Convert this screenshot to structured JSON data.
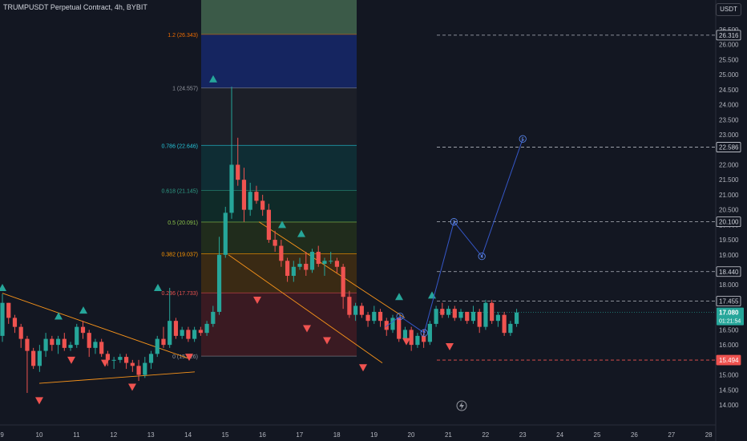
{
  "header": {
    "symbol_title": "TRUMPUSDT Perpetual Contract, 4h, BYBIT",
    "currency_button": "USDT"
  },
  "colors": {
    "up": "#26a69a",
    "down": "#ef5350",
    "bg": "#131722",
    "axis_text": "#b2b5be",
    "wave": "#2962ff",
    "trend": "#f7931a"
  },
  "chart_data": {
    "type": "candlestick",
    "title": "TRUMPUSDT Perpetual Contract, 4h, BYBIT",
    "yaxis": {
      "min": 14.0,
      "max": 26.5,
      "step": 0.5,
      "side": "right"
    },
    "xaxis": {
      "ticks": [
        "9",
        "10",
        "11",
        "12",
        "13",
        "14",
        "15",
        "16",
        "17",
        "18",
        "19",
        "20",
        "21",
        "22",
        "23",
        "24",
        "25",
        "26",
        "27",
        "28"
      ]
    },
    "candles": [
      [
        16.3,
        17.7,
        16.1,
        17.4
      ],
      [
        17.4,
        17.4,
        16.7,
        16.9
      ],
      [
        16.9,
        17.0,
        16.4,
        16.6
      ],
      [
        16.6,
        16.7,
        15.9,
        16.2
      ],
      [
        16.2,
        16.3,
        14.4,
        15.8
      ],
      [
        15.8,
        15.9,
        15.2,
        15.3
      ],
      [
        15.3,
        16.0,
        15.1,
        15.8
      ],
      [
        15.8,
        16.4,
        15.6,
        16.2
      ],
      [
        16.2,
        16.3,
        15.8,
        16.0
      ],
      [
        16.0,
        16.3,
        15.7,
        16.2
      ],
      [
        16.2,
        16.4,
        15.8,
        15.9
      ],
      [
        15.9,
        16.1,
        15.8,
        16.0
      ],
      [
        16.0,
        16.7,
        15.9,
        16.6
      ],
      [
        16.6,
        16.8,
        16.2,
        16.4
      ],
      [
        16.4,
        16.5,
        15.6,
        15.9
      ],
      [
        15.9,
        16.2,
        15.7,
        16.1
      ],
      [
        16.1,
        16.2,
        15.6,
        15.7
      ],
      [
        15.7,
        15.8,
        15.3,
        15.5
      ],
      [
        15.5,
        15.6,
        15.2,
        15.5
      ],
      [
        15.5,
        15.7,
        15.4,
        15.6
      ],
      [
        15.6,
        15.7,
        15.2,
        15.4
      ],
      [
        15.4,
        15.5,
        15.1,
        15.3
      ],
      [
        15.3,
        15.5,
        14.8,
        15.0
      ],
      [
        15.0,
        15.6,
        14.9,
        15.4
      ],
      [
        15.4,
        15.8,
        15.2,
        15.7
      ],
      [
        15.7,
        16.3,
        15.6,
        16.2
      ],
      [
        16.2,
        16.6,
        15.9,
        16.0
      ],
      [
        16.0,
        17.9,
        15.9,
        16.8
      ],
      [
        16.8,
        16.9,
        16.2,
        16.3
      ],
      [
        16.3,
        16.6,
        16.2,
        16.5
      ],
      [
        16.5,
        16.6,
        16.1,
        16.2
      ],
      [
        16.2,
        16.6,
        16.1,
        16.5
      ],
      [
        16.5,
        16.6,
        16.3,
        16.4
      ],
      [
        16.4,
        16.8,
        16.3,
        16.7
      ],
      [
        16.7,
        17.3,
        16.6,
        17.1
      ],
      [
        17.1,
        19.6,
        17.0,
        19.0
      ],
      [
        19.0,
        20.6,
        18.9,
        20.4
      ],
      [
        20.4,
        24.6,
        20.2,
        22.0
      ],
      [
        22.0,
        22.9,
        21.3,
        21.5
      ],
      [
        21.5,
        21.9,
        20.1,
        20.5
      ],
      [
        20.5,
        21.4,
        20.3,
        21.1
      ],
      [
        21.1,
        21.3,
        20.7,
        20.8
      ],
      [
        20.8,
        21.0,
        20.3,
        20.5
      ],
      [
        20.5,
        20.7,
        19.4,
        19.5
      ],
      [
        19.5,
        19.8,
        19.1,
        19.3
      ],
      [
        19.3,
        19.5,
        18.6,
        18.8
      ],
      [
        18.8,
        18.9,
        18.1,
        18.3
      ],
      [
        18.3,
        18.8,
        18.1,
        18.6
      ],
      [
        18.6,
        18.9,
        18.5,
        18.7
      ],
      [
        18.7,
        19.1,
        18.3,
        18.5
      ],
      [
        18.5,
        19.2,
        18.4,
        19.1
      ],
      [
        19.1,
        19.3,
        18.6,
        18.7
      ],
      [
        18.7,
        18.9,
        18.3,
        18.8
      ],
      [
        18.8,
        19.1,
        18.7,
        18.8
      ],
      [
        18.8,
        18.9,
        18.4,
        18.6
      ],
      [
        18.6,
        18.7,
        17.2,
        17.6
      ],
      [
        17.6,
        17.8,
        16.9,
        17.0
      ],
      [
        17.0,
        17.4,
        16.8,
        17.3
      ],
      [
        17.3,
        17.4,
        16.9,
        17.0
      ],
      [
        17.0,
        17.1,
        16.6,
        16.8
      ],
      [
        16.8,
        17.3,
        16.7,
        17.1
      ],
      [
        17.1,
        17.2,
        16.6,
        16.8
      ],
      [
        16.8,
        16.9,
        16.3,
        16.5
      ],
      [
        16.5,
        17.0,
        16.4,
        16.9
      ],
      [
        16.9,
        16.9,
        16.1,
        16.2
      ],
      [
        16.2,
        16.6,
        16.1,
        16.5
      ],
      [
        16.5,
        16.6,
        15.8,
        16.0
      ],
      [
        16.0,
        16.4,
        15.9,
        16.3
      ],
      [
        16.3,
        16.5,
        15.9,
        16.1
      ],
      [
        16.1,
        16.8,
        16.0,
        16.7
      ],
      [
        16.7,
        17.3,
        16.6,
        17.2
      ],
      [
        17.2,
        17.4,
        16.9,
        17.0
      ],
      [
        17.0,
        17.3,
        16.9,
        17.2
      ],
      [
        17.2,
        17.3,
        16.8,
        16.9
      ],
      [
        16.9,
        17.2,
        16.8,
        17.1
      ],
      [
        17.1,
        17.1,
        16.7,
        16.8
      ],
      [
        16.8,
        17.3,
        16.7,
        17.1
      ],
      [
        17.1,
        17.2,
        16.4,
        16.6
      ],
      [
        16.6,
        17.5,
        16.5,
        17.4
      ],
      [
        17.4,
        17.5,
        16.7,
        16.8
      ],
      [
        16.8,
        17.1,
        16.6,
        17.0
      ],
      [
        17.0,
        17.1,
        16.3,
        16.4
      ],
      [
        16.4,
        16.8,
        16.3,
        16.7
      ],
      [
        16.7,
        17.2,
        16.6,
        17.08
      ]
    ],
    "fib_levels": [
      {
        "label": "1.2 (26.343)",
        "value": 26.343,
        "color": "#ef6c00",
        "fill": "#344a3d"
      },
      {
        "label": "1 (24.557)",
        "value": 24.557,
        "color": "#9598a1",
        "fill": "#152560"
      },
      {
        "label": "0.786 (22.646)",
        "value": 22.646,
        "color": "#26c6da",
        "fill": "#1c1f28"
      },
      {
        "label": "0.618 (21.145)",
        "value": 21.145,
        "color": "#2e9e87",
        "fill": "#0f2d34"
      },
      {
        "label": "0.5 (20.091)",
        "value": 20.091,
        "color": "#8bc34a",
        "fill": "#0f2a28"
      },
      {
        "label": "0.382 (19.037)",
        "value": 19.037,
        "color": "#ff9800",
        "fill": "#202c1c"
      },
      {
        "label": "0.236 (17.733)",
        "value": 17.733,
        "color": "#ef5350",
        "fill": "#3a2a14"
      },
      {
        "label": "0 (15.626)",
        "value": 15.626,
        "color": "#9598a1",
        "fill": "#3a1a22"
      }
    ],
    "price_lines": [
      {
        "value": 26.316,
        "label": "26.316",
        "color": "#b2b5be"
      },
      {
        "value": 22.586,
        "label": "22.586",
        "color": "#b2b5be"
      },
      {
        "value": 20.1,
        "label": "20.100",
        "color": "#b2b5be"
      },
      {
        "value": 18.44,
        "label": "18.440",
        "color": "#b2b5be"
      },
      {
        "value": 17.455,
        "label": "17.455",
        "color": "#b2b5be"
      },
      {
        "value": 15.494,
        "label": "15.494",
        "color": "#ef5350"
      }
    ],
    "last_price": {
      "value": 17.08,
      "label": "17.080",
      "countdown": "01:21:54"
    },
    "wave_labels": [
      "1",
      "2",
      "3",
      "4",
      "5"
    ],
    "wave_points": [
      [
        19.7,
        16.95
      ],
      [
        20.35,
        16.4
      ],
      [
        21.15,
        20.1
      ],
      [
        21.9,
        18.95
      ],
      [
        23.0,
        22.86
      ]
    ]
  }
}
